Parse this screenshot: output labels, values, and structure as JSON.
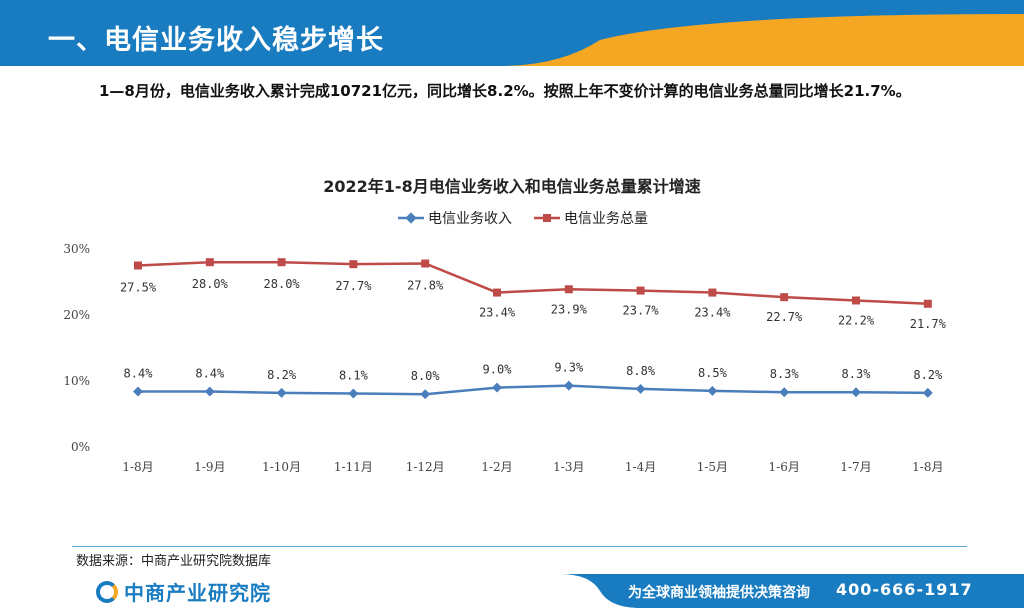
{
  "header": {
    "title": "一、电信业务收入稳步增长"
  },
  "intro": {
    "text": "1—8月份，电信业务收入累计完成10721亿元，同比增长8.2%。按照上年不变价计算的电信业务总量同比增长21.7%。"
  },
  "chart_data": {
    "type": "line",
    "title": "2022年1-8月电信业务收入和电信业务总量累计增速",
    "categories": [
      "1-8月",
      "1-9月",
      "1-10月",
      "1-11月",
      "1-12月",
      "1-2月",
      "1-3月",
      "1-4月",
      "1-5月",
      "1-6月",
      "1-7月",
      "1-8月"
    ],
    "ylim": [
      0,
      30
    ],
    "yticks": [
      "0%",
      "10%",
      "20%",
      "30%"
    ],
    "series": [
      {
        "name": "电信业务收入",
        "color": "#4a7ebb",
        "marker": "diamond",
        "values": [
          8.4,
          8.4,
          8.2,
          8.1,
          8.0,
          9.0,
          9.3,
          8.8,
          8.5,
          8.3,
          8.3,
          8.2
        ],
        "labels": [
          "8.4%",
          "8.4%",
          "8.2%",
          "8.1%",
          "8.0%",
          "9.0%",
          "9.3%",
          "8.8%",
          "8.5%",
          "8.3%",
          "8.3%",
          "8.2%"
        ]
      },
      {
        "name": "电信业务总量",
        "color": "#be4b48",
        "marker": "square",
        "values": [
          27.5,
          28.0,
          28.0,
          27.7,
          27.8,
          23.4,
          23.9,
          23.7,
          23.4,
          22.7,
          22.2,
          21.7
        ],
        "labels": [
          "27.5%",
          "28.0%",
          "28.0%",
          "27.7%",
          "27.8%",
          "23.4%",
          "23.9%",
          "23.7%",
          "23.4%",
          "22.7%",
          "22.2%",
          "21.7%"
        ]
      }
    ]
  },
  "footer": {
    "source": "数据来源：中商产业研究院数据库",
    "logo": "中商产业研究院",
    "slogan": "为全球商业领袖提供决策咨询",
    "phone": "400-666-1917"
  },
  "colors": {
    "brand_blue": "#1a7cc0",
    "accent_orange": "#f5a623"
  }
}
